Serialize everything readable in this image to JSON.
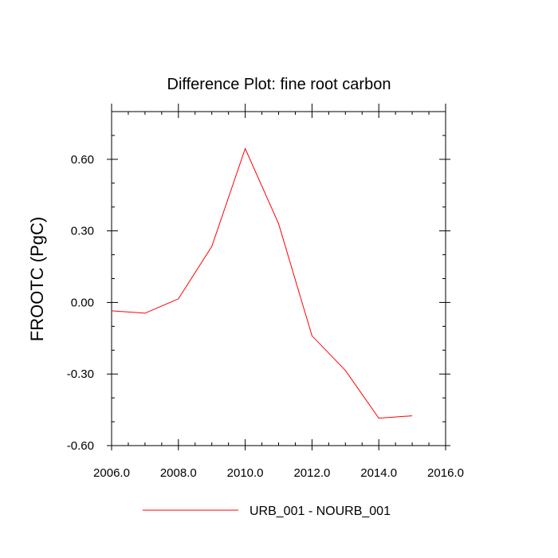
{
  "chart_data": {
    "type": "line",
    "title": "Difference Plot: fine root carbon",
    "xlabel": "",
    "ylabel": "FROOTC  (PgC)",
    "xlim": [
      2006.0,
      2016.0
    ],
    "ylim": [
      -0.6,
      0.8
    ],
    "xticks": [
      2006,
      2008,
      2010,
      2012,
      2014,
      2016
    ],
    "xtick_labels": [
      "2006.0",
      "2008.0",
      "2010.0",
      "2012.0",
      "2014.0",
      "2016.0"
    ],
    "yticks": [
      -0.6,
      -0.3,
      0.0,
      0.3,
      0.6
    ],
    "ytick_labels": [
      "-0.60",
      "-0.30",
      "0.00",
      "0.30",
      "0.60"
    ],
    "grid": false,
    "legend_position": "bottom",
    "series": [
      {
        "name": "URB_001 - NOURB_001",
        "color": "#ff0000",
        "x": [
          2006,
          2007,
          2008,
          2009,
          2010,
          2011,
          2012,
          2013,
          2014,
          2015
        ],
        "values": [
          -0.035,
          -0.045,
          0.015,
          0.235,
          0.645,
          0.33,
          -0.14,
          -0.285,
          -0.485,
          -0.475
        ]
      }
    ]
  }
}
